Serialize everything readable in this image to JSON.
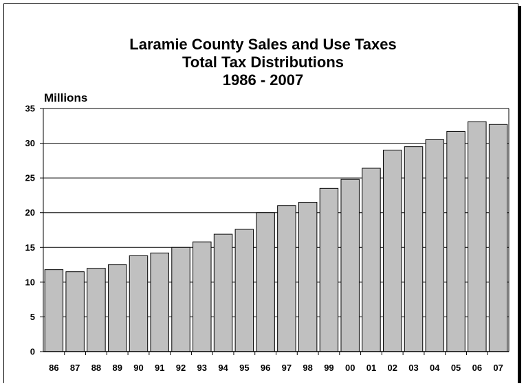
{
  "header": {
    "title_lines": [
      "Laramie County Sales and Use Taxes",
      "Total Tax Distributions",
      "1986 - 2007"
    ]
  },
  "axis": {
    "unit_label": "Millions"
  },
  "colors": {
    "bar_fill": "#c0c0c0",
    "bar_stroke": "#000000",
    "grid": "#000000"
  },
  "chart_data": {
    "type": "bar",
    "title": "Laramie County Sales and Use Taxes\nTotal Tax Distributions\n1986 - 2007",
    "xlabel": "",
    "ylabel": "Millions",
    "ylim": [
      0,
      35
    ],
    "yticks": [
      0,
      5,
      10,
      15,
      20,
      25,
      30,
      35
    ],
    "grid": true,
    "categories": [
      "86",
      "87",
      "88",
      "89",
      "90",
      "91",
      "92",
      "93",
      "94",
      "95",
      "96",
      "97",
      "98",
      "99",
      "00",
      "01",
      "02",
      "03",
      "04",
      "05",
      "06",
      "07"
    ],
    "values": [
      11.8,
      11.5,
      12.0,
      12.5,
      13.8,
      14.2,
      15.0,
      15.8,
      16.9,
      17.6,
      20.0,
      21.0,
      21.5,
      23.5,
      24.8,
      26.4,
      29.0,
      29.5,
      30.5,
      31.7,
      33.1,
      32.7
    ]
  }
}
